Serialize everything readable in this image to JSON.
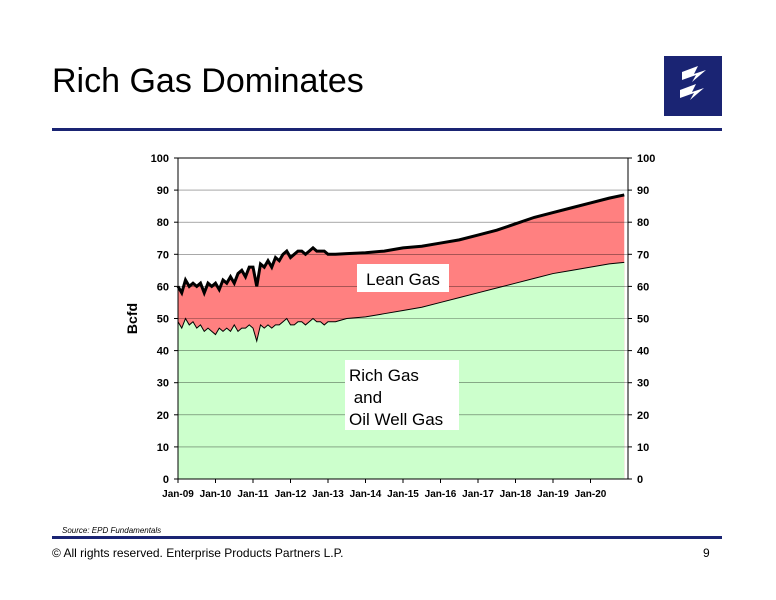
{
  "slide": {
    "title": "Rich Gas Dominates",
    "source": "Source:  EPD Fundamentals",
    "copyright": "©  All rights reserved. Enterprise Products Partners L.P.",
    "page_number": "9",
    "accent_color": "#1a2473",
    "logo_icon": "lightning-logo-icon"
  },
  "chart_data": {
    "type": "area",
    "title": "",
    "xlabel": "",
    "ylabel": "Bcfd",
    "ylim": [
      0,
      100
    ],
    "yticks": [
      0,
      10,
      20,
      30,
      40,
      50,
      60,
      70,
      80,
      90,
      100
    ],
    "secondary_y_axis": true,
    "x_tick_labels": [
      "Jan-09",
      "Jan-10",
      "Jan-11",
      "Jan-12",
      "Jan-13",
      "Jan-14",
      "Jan-15",
      "Jan-16",
      "Jan-17",
      "Jan-18",
      "Jan-19",
      "Jan-20"
    ],
    "grid": "horizontal",
    "x": [
      2009.0,
      2009.1,
      2009.2,
      2009.3,
      2009.4,
      2009.5,
      2009.6,
      2009.7,
      2009.8,
      2009.9,
      2010.0,
      2010.1,
      2010.2,
      2010.3,
      2010.4,
      2010.5,
      2010.6,
      2010.7,
      2010.8,
      2010.9,
      2011.0,
      2011.1,
      2011.2,
      2011.3,
      2011.4,
      2011.5,
      2011.6,
      2011.7,
      2011.8,
      2011.9,
      2012.0,
      2012.1,
      2012.2,
      2012.3,
      2012.4,
      2012.5,
      2012.6,
      2012.7,
      2012.8,
      2012.9,
      2013.0,
      2013.2,
      2013.5,
      2014.0,
      2014.5,
      2015.0,
      2015.5,
      2016.0,
      2016.5,
      2017.0,
      2017.5,
      2018.0,
      2018.5,
      2019.0,
      2019.5,
      2020.0,
      2020.5,
      2020.9
    ],
    "series": [
      {
        "name": "Rich Gas and Oil Well Gas",
        "label_lines": [
          "Rich Gas",
          " and",
          "Oil Well Gas"
        ],
        "color": "#ccffcc",
        "values": [
          49,
          47,
          50,
          48,
          49,
          47,
          48,
          46,
          47,
          46,
          45,
          47,
          46,
          47,
          46,
          48,
          46,
          47,
          47,
          48,
          47,
          43,
          48,
          47,
          48,
          47,
          48,
          48,
          49,
          50,
          48,
          48,
          49,
          49,
          48,
          49,
          50,
          49,
          49,
          48,
          49,
          49,
          50,
          50.5,
          51.5,
          52.5,
          53.5,
          55,
          56.5,
          58,
          59.5,
          61,
          62.5,
          64,
          65,
          66,
          67,
          67.5
        ]
      },
      {
        "name": "Lean Gas",
        "label_lines": [
          "Lean Gas"
        ],
        "color": "#ff8080",
        "total_values": [
          60,
          58,
          62,
          60,
          61,
          60,
          61,
          58,
          61,
          60,
          61,
          59,
          62,
          61,
          63,
          61,
          64,
          65,
          63,
          66,
          66,
          60,
          67,
          66,
          68,
          66,
          69,
          68,
          70,
          71,
          69,
          70,
          71,
          71,
          70,
          71,
          72,
          71,
          71,
          71,
          70,
          70,
          70.2,
          70.5,
          71,
          72,
          72.5,
          73.5,
          74.5,
          76,
          77.5,
          79.5,
          81.5,
          83,
          84.5,
          86,
          87.5,
          88.5
        ]
      }
    ]
  }
}
